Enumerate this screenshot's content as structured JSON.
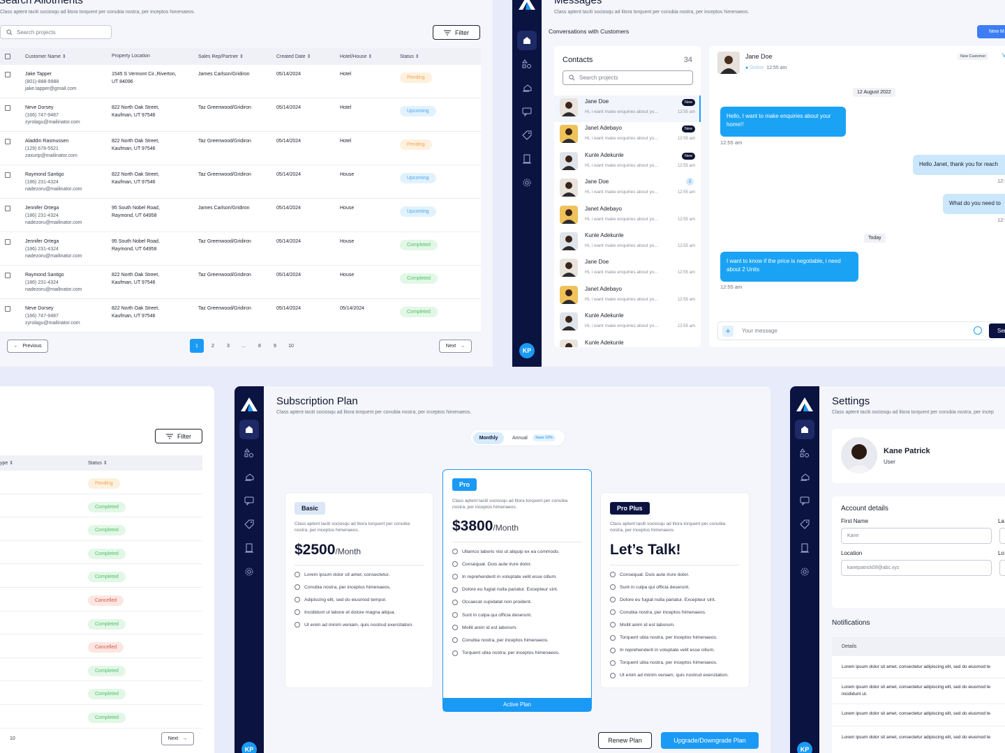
{
  "allotments": {
    "title": "Search Allotments",
    "subtitle": "Class aptent taciti sociosqu ad litora torquent per conubia nostra, per inceptos himenaeos.",
    "search_placeholder": "Search projects",
    "filter_label": "Filter",
    "columns": [
      "Customer Name",
      "Property Location",
      "Sales Rep/Partner",
      "Created Date",
      "Hotel/House",
      "Status"
    ],
    "rows": [
      {
        "name": "Jake Tapper",
        "phone": "(801)-888-9988",
        "email": "jake.tapper@gmail.com",
        "loc1": "1545 S Vermont Cir.,Riverton,",
        "loc2": "UT 84096",
        "rep": "James Carlson/Gridiron",
        "date": "05/14/2024",
        "type": "Hotel",
        "status": "Pending"
      },
      {
        "name": "Neve Dorsey",
        "phone": "(166) 747-9487",
        "email": "zyrolagu@mailinator.com",
        "loc1": "822 North Oak Street,",
        "loc2": "Kaufman, UT 97546",
        "rep": "Taz Greenwood/Gridiron",
        "date": "05/14/2024",
        "type": "Hotel",
        "status": "Upcoming"
      },
      {
        "name": "Aladdin Rasmussen",
        "phone": "(129) 678-5521",
        "email": "zaxurip@mailinator.com",
        "loc1": "822 North Oak Street,",
        "loc2": "Kaufman, UT 97546",
        "rep": "Taz Greenwood/Gridiron",
        "date": "05/14/2024",
        "type": "Hotel",
        "status": "Pending"
      },
      {
        "name": "Raymond Santigo",
        "phone": "(186) 231-4324",
        "email": "nadezoru@mailinator.com",
        "loc1": "822 North Oak Street,",
        "loc2": "Kaufman, UT 97546",
        "rep": "Taz Greenwood/Gridiron",
        "date": "05/14/2024",
        "type": "House",
        "status": "Upcoming"
      },
      {
        "name": "Jennifer Ortega",
        "phone": "(186) 231-4324",
        "email": "nadezoru@mailinator.com",
        "loc1": "95 South Nobel Road,",
        "loc2": "Raymond, UT 64958",
        "rep": "James Carlson/Gridiron",
        "date": "05/14/2024",
        "type": "House",
        "status": "Upcoming"
      },
      {
        "name": "Jennifer Ortega",
        "phone": "(186) 231-4324",
        "email": "nadezoru@mailinator.com",
        "loc1": "95 South Nobel Road,",
        "loc2": "Raymond, UT 64958",
        "rep": "Taz Greenwood/Gridiron",
        "date": "05/14/2024",
        "type": "House",
        "status": "Completed"
      },
      {
        "name": "Raymond Santigo",
        "phone": "(186) 231-4324",
        "email": "nadezoru@mailinator.com",
        "loc1": "822 North Oak Street,",
        "loc2": "Kaufman, UT 97546",
        "rep": "Taz Greenwood/Gridiron",
        "date": "05/14/2024",
        "type": "House",
        "status": "Completed"
      },
      {
        "name": "Neve Dorsey",
        "phone": "(166) 747-9487",
        "email": "zyrolagu@mailinator.com",
        "loc1": "822 North Oak Street,",
        "loc2": "Kaufman, UT 97546",
        "rep": "Taz Greenwood/Gridiron",
        "date": "05/14/2024",
        "type": "05/14/2024",
        "status": "Completed"
      }
    ],
    "prev_label": "Previous",
    "next_label": "Next",
    "pages": [
      "1",
      "2",
      "3",
      "...",
      "8",
      "9",
      "10"
    ]
  },
  "messages": {
    "title": "Messages",
    "subtitle": "Class aptent taciti sociosqu ad litora torquent per conubia nostra, per inceptos himenaeos.",
    "section": "Conversations with Customers",
    "new_button": "New M",
    "contacts_title": "Contacts",
    "contacts_count": "34",
    "search_placeholder": "Search projects",
    "contacts": [
      {
        "name": "Jane Doe",
        "preview": "Hi, i want make enquiries about yo...",
        "time": "12:55 am",
        "badge": "New",
        "count": ""
      },
      {
        "name": "Janet Adebayo",
        "preview": "Hi, i want make enquiries about yo...",
        "time": "12:55 am",
        "badge": "New",
        "count": ""
      },
      {
        "name": "Kunle Adekunle",
        "preview": "Hi, i want make enquiries about yo...",
        "time": "12:55 am",
        "badge": "New",
        "count": ""
      },
      {
        "name": "Jane Doe",
        "preview": "Hi, i want make enquiries about yo...",
        "time": "12:55 am",
        "badge": "",
        "count": "2"
      },
      {
        "name": "Janet Adebayo",
        "preview": "Hi, i want make enquiries about yo...",
        "time": "12:55 am",
        "badge": "",
        "count": ""
      },
      {
        "name": "Kunle Adekunle",
        "preview": "Hi, i want make enquiries about yo...",
        "time": "12:55 am",
        "badge": "",
        "count": ""
      },
      {
        "name": "Jane Doe",
        "preview": "Hi, i want make enquiries about yo...",
        "time": "12:55 am",
        "badge": "",
        "count": ""
      },
      {
        "name": "Janet Adebayo",
        "preview": "Hi, i want make enquiries about yo...",
        "time": "12:55 am",
        "badge": "",
        "count": ""
      },
      {
        "name": "Kunle Adekunle",
        "preview": "Hi, i want make enquiries about yo...",
        "time": "12:55 am",
        "badge": "",
        "count": ""
      },
      {
        "name": "Kunle Adekunle",
        "preview": "",
        "time": "",
        "badge": "",
        "count": ""
      }
    ],
    "chat": {
      "name": "Jane Doe",
      "status": "Online",
      "status_time": "12:55 am",
      "tag": "New Customer",
      "view": "Vi",
      "date1": "12 August 2022",
      "msg1": "Hello, I want to make enquiries about your home!!",
      "msg1_time": "12:55 am",
      "msg2": "Hello Janet, thank you for reach",
      "msg2_time": "12:5",
      "msg3": "What do you need to",
      "msg3_time": "12:5",
      "date2": "Today",
      "msg4": "I want to know if the price is negotiable, i need about 2 Units",
      "msg4_time": "12:55 am",
      "placeholder": "Your message",
      "send": "Sen"
    }
  },
  "statuslist": {
    "filter_label": "Filter",
    "col_type": "ype",
    "col_status": "Status",
    "statuses": [
      "Pending",
      "Completed",
      "Completed",
      "Completed",
      "Completed",
      "Cancelled",
      "Completed",
      "Cancelled",
      "Completed",
      "Completed",
      "Completed"
    ],
    "page": "10",
    "next_label": "Next"
  },
  "subscription": {
    "title": "Subscription Plan",
    "subtitle": "Class aptent taciti sociosqu ad litora torquent per conubia nostra, per inceptos himenaeos.",
    "toggle_monthly": "Monthly",
    "toggle_annual": "Annual",
    "save": "Save 10%",
    "basic": {
      "tag": "Basic",
      "desc": "Class aptent taciti sociosqu ad litora torquent per conubia nostra, per inceptos himenaeos.",
      "price": "$2500",
      "per": "/Month",
      "features": [
        "Lorem ipsum dolor sit amet, consectetur.",
        "Conubia nostra, per inceptos himenaeos.",
        "Adipiscing elit, sed do eiusmod tempor.",
        "Incididunt ut labore et dolore magna aliqua.",
        "Ut enim ad minim veniam, quis nostrud exercitation."
      ]
    },
    "pro": {
      "tag": "Pro",
      "desc": "Class aptent taciti sociosqu ad litora torquent per conubia nostra, per inceptos himenaeos.",
      "price": "$3800",
      "per": "/Month",
      "features": [
        "Ullamco laboris nisi ut aliquip ex ea commodo.",
        "Consequat. Duis aute irure dolor.",
        "In reprehenderit in voluptate velit esse cillum.",
        "Dolore eu fugiat nulla pariatur. Excepteur sint.",
        "Occaecat cupidatat non proident.",
        "Sunt in culpa qui officia deserunt.",
        "Mollit anim id est laborum.",
        "Conubia nostra, per inceptos himenaeos.",
        "Torquent ubia nostra, per inceptos himenaeos."
      ],
      "active": "Active Plan"
    },
    "proplus": {
      "tag": "Pro Plus",
      "desc": "Class aptent taciti sociosqu ad litora torquent per conubia nostra, per inceptos himenaeos.",
      "price": "Let’s Talk!",
      "features": [
        "Consequat. Duis aute irure dolor.",
        "Sunt in culpa qui officia deserunt.",
        "Dolore eu fugiat nulla pariatur. Excepteur sint.",
        "Conubia nostra, per inceptos himenaeos.",
        "Mollit anim id est laborum.",
        "Torquent ubia nostra, per inceptos himenaeos.",
        "In reprehenderit in voluptate velit esse cillum.",
        "Torquent ubia nostra, per inceptos himenaeos.",
        "Ut enim ad minim veniam, quis nostrud exercitation."
      ]
    },
    "renew": "Renew Plan",
    "upgrade": "Upgrade/Downgrade Plan"
  },
  "settings": {
    "title": "Settings",
    "subtitle": "Class aptent taciti sociosqu ad litora torquent per conubia nostra, per incep",
    "user_name": "Kane Patrick",
    "user_role": "User",
    "account_title": "Account details",
    "first_name_label": "First Name",
    "last_name_label": "La",
    "first_name_value": "Kane",
    "location_label": "Location",
    "location2_label": "Lo",
    "location_value": "kanepatrick09@abc.xyz",
    "notifications_title": "Notifications",
    "details_header": "Details",
    "notifications": [
      "Lorem ipsum dolor sit amet, consectetur adipiscing elit, sed do eiusmod te",
      "Lorem ipsum dolor sit amet, consectetur adipiscing elit, sed do eiusmod te",
      "incididunt ut.",
      "Lorem ipsum dolor sit amet, consectetur adipiscing elit, sed do eiusmod te",
      "Lorem ipsum dolor sit amet, consectetur adipiscing elit, sed do eiusmod te"
    ]
  },
  "avatar_initials": "KP",
  "colors": {
    "navy": "#0b1340",
    "accent": "#1a9af5"
  }
}
